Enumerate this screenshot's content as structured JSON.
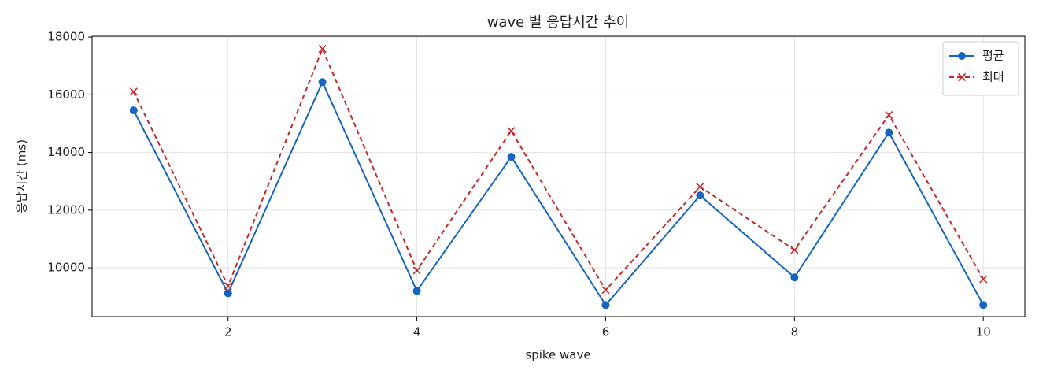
{
  "chart_data": {
    "type": "line",
    "title": "wave 별 응답시간 추이",
    "xlabel": "spike wave",
    "ylabel": "응답시간 (ms)",
    "x": [
      1,
      2,
      3,
      4,
      5,
      6,
      7,
      8,
      9,
      10
    ],
    "series": [
      {
        "name": "평균",
        "color": "#1565c0",
        "marker": "circle",
        "dash": false,
        "values": [
          15460,
          9120,
          16440,
          9200,
          13850,
          8710,
          12510,
          9670,
          14690,
          8710
        ]
      },
      {
        "name": "최대",
        "color": "#c62828",
        "marker": "x",
        "dash": true,
        "values": [
          16110,
          9370,
          17590,
          9910,
          14750,
          9230,
          12810,
          10620,
          15300,
          9610
        ]
      }
    ],
    "xlim": [
      0.56,
      10.44
    ],
    "xticks": [
      2,
      4,
      6,
      8,
      10
    ],
    "ylim": [
      8310,
      18030
    ],
    "yticks": [
      10000,
      12000,
      14000,
      16000,
      18000
    ],
    "grid": true,
    "legend": "upper right"
  }
}
